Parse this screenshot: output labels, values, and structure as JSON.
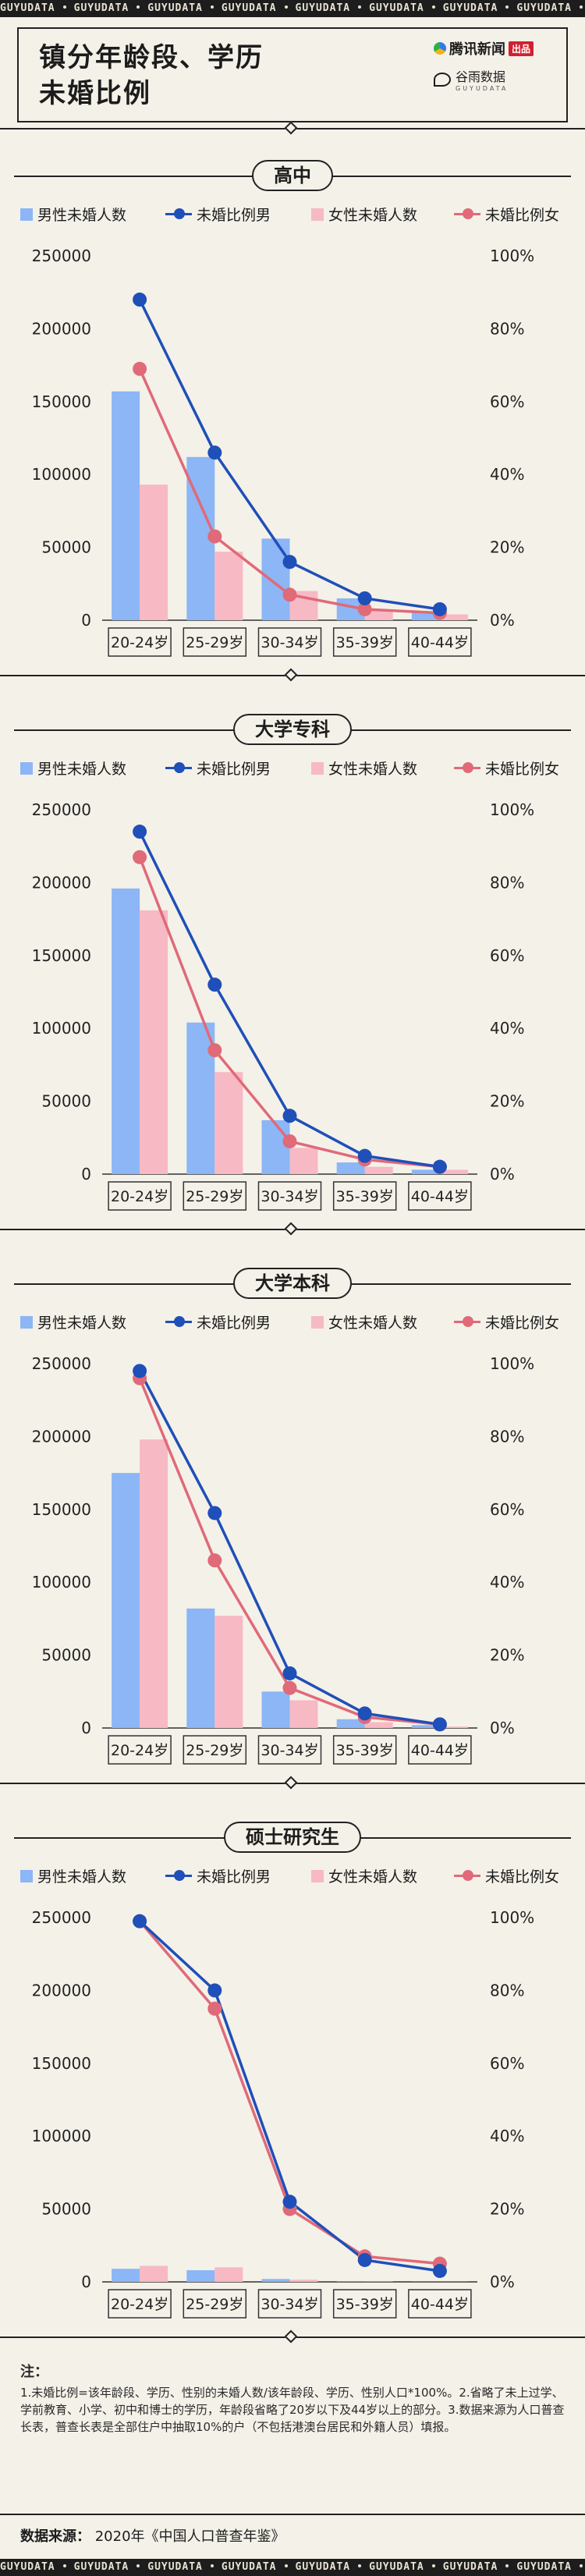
{
  "tape_text": "GUYUDATA",
  "header": {
    "title_line1": "镇分年龄段、学历",
    "title_line2": "未婚比例",
    "logo_tencent": "腾讯新闻",
    "logo_tencent_badge": "出品",
    "logo_guyu": "谷雨数据",
    "logo_guyu_sub": "GUYUDATA"
  },
  "legend": {
    "male_count": "男性未婚人数",
    "male_ratio": "未婚比例男",
    "female_count": "女性未婚人数",
    "female_ratio": "未婚比例女"
  },
  "colors": {
    "male_bar": "#8cb6f5",
    "female_bar": "#f7b9c4",
    "male_line": "#1f4fb8",
    "female_line": "#e06a78"
  },
  "chart_data": [
    {
      "type": "bar",
      "title": "高中",
      "categories": [
        "20-24岁",
        "25-29岁",
        "30-34岁",
        "35-39岁",
        "40-44岁"
      ],
      "y_ticks": [
        "0",
        "50000",
        "100000",
        "150000",
        "200000",
        "250000"
      ],
      "y2_ticks": [
        "0%",
        "20%",
        "40%",
        "60%",
        "80%",
        "100%"
      ],
      "ylim": [
        0,
        250000
      ],
      "y2lim": [
        0,
        100
      ],
      "series": [
        {
          "name": "男性未婚人数",
          "kind": "bar",
          "axis": "left",
          "values": [
            157000,
            112000,
            56000,
            15000,
            6000
          ]
        },
        {
          "name": "女性未婚人数",
          "kind": "bar",
          "axis": "left",
          "values": [
            93000,
            47000,
            20000,
            7000,
            4000
          ]
        },
        {
          "name": "未婚比例男",
          "kind": "line",
          "axis": "right",
          "values": [
            88,
            46,
            16,
            6,
            3
          ]
        },
        {
          "name": "未婚比例女",
          "kind": "line",
          "axis": "right",
          "values": [
            69,
            23,
            7,
            3,
            2
          ]
        }
      ]
    },
    {
      "type": "bar",
      "title": "大学专科",
      "categories": [
        "20-24岁",
        "25-29岁",
        "30-34岁",
        "35-39岁",
        "40-44岁"
      ],
      "y_ticks": [
        "0",
        "50000",
        "100000",
        "150000",
        "200000",
        "250000"
      ],
      "y2_ticks": [
        "0%",
        "20%",
        "40%",
        "60%",
        "80%",
        "100%"
      ],
      "ylim": [
        0,
        250000
      ],
      "y2lim": [
        0,
        100
      ],
      "series": [
        {
          "name": "男性未婚人数",
          "kind": "bar",
          "axis": "left",
          "values": [
            196000,
            104000,
            37000,
            8000,
            3000
          ]
        },
        {
          "name": "女性未婚人数",
          "kind": "bar",
          "axis": "left",
          "values": [
            181000,
            70000,
            18000,
            5000,
            3000
          ]
        },
        {
          "name": "未婚比例男",
          "kind": "line",
          "axis": "right",
          "values": [
            94,
            52,
            16,
            5,
            2
          ]
        },
        {
          "name": "未婚比例女",
          "kind": "line",
          "axis": "right",
          "values": [
            87,
            34,
            9,
            4,
            2
          ]
        }
      ]
    },
    {
      "type": "bar",
      "title": "大学本科",
      "categories": [
        "20-24岁",
        "25-29岁",
        "30-34岁",
        "35-39岁",
        "40-44岁"
      ],
      "y_ticks": [
        "0",
        "50000",
        "100000",
        "150000",
        "200000",
        "250000"
      ],
      "y2_ticks": [
        "0%",
        "20%",
        "40%",
        "60%",
        "80%",
        "100%"
      ],
      "ylim": [
        0,
        250000
      ],
      "y2lim": [
        0,
        100
      ],
      "series": [
        {
          "name": "男性未婚人数",
          "kind": "bar",
          "axis": "left",
          "values": [
            175000,
            82000,
            25000,
            6000,
            2000
          ]
        },
        {
          "name": "女性未婚人数",
          "kind": "bar",
          "axis": "left",
          "values": [
            198000,
            77000,
            19000,
            4000,
            1000
          ]
        },
        {
          "name": "未婚比例男",
          "kind": "line",
          "axis": "right",
          "values": [
            98,
            59,
            15,
            4,
            1
          ]
        },
        {
          "name": "未婚比例女",
          "kind": "line",
          "axis": "right",
          "values": [
            96,
            46,
            11,
            3,
            1
          ]
        }
      ]
    },
    {
      "type": "bar",
      "title": "硕士研究生",
      "categories": [
        "20-24岁",
        "25-29岁",
        "30-34岁",
        "35-39岁",
        "40-44岁"
      ],
      "y_ticks": [
        "0",
        "50000",
        "100000",
        "150000",
        "200000",
        "250000"
      ],
      "y2_ticks": [
        "0%",
        "20%",
        "40%",
        "60%",
        "80%",
        "100%"
      ],
      "ylim": [
        0,
        250000
      ],
      "y2lim": [
        0,
        100
      ],
      "series": [
        {
          "name": "男性未婚人数",
          "kind": "bar",
          "axis": "left",
          "values": [
            9000,
            8000,
            2000,
            200,
            100
          ]
        },
        {
          "name": "女性未婚人数",
          "kind": "bar",
          "axis": "left",
          "values": [
            11000,
            10000,
            1500,
            200,
            100
          ]
        },
        {
          "name": "未婚比例男",
          "kind": "line",
          "axis": "right",
          "values": [
            99,
            80,
            22,
            6,
            3
          ]
        },
        {
          "name": "未婚比例女",
          "kind": "line",
          "axis": "right",
          "values": [
            99,
            75,
            20,
            7,
            5
          ]
        }
      ]
    }
  ],
  "notes": {
    "heading": "注：",
    "body": "1.未婚比例=该年龄段、学历、性别的未婚人数/该年龄段、学历、性别人口*100%。2.省略了未上过学、学前教育、小学、初中和博士的学历，年龄段省略了20岁以下及44岁以上的部分。3.数据来源为人口普查长表，普查长表是全部住户中抽取10%的户（不包括港澳台居民和外籍人员）填报。"
  },
  "source": {
    "label": "数据来源：",
    "text": "2020年《中国人口普查年鉴》"
  }
}
